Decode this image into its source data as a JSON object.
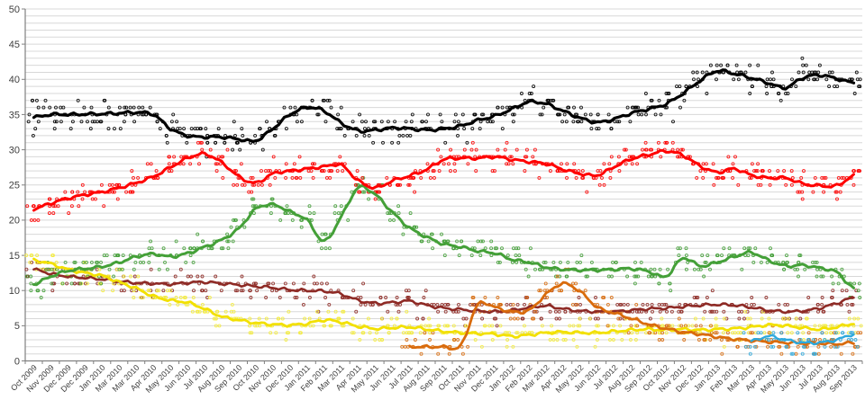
{
  "page": {
    "background": "#FFFFFF"
  },
  "chart_data": {
    "type": "scatter",
    "subtype": "poll-scatter-with-trend-lines",
    "title": "",
    "xlabel": "",
    "ylabel": "",
    "ylim": [
      0,
      50
    ],
    "y_ticks": [
      0,
      5,
      10,
      15,
      20,
      25,
      30,
      35,
      40,
      45,
      50
    ],
    "minor_grid_step": 1,
    "grid_on": true,
    "legend": "none",
    "grid_color": "#D8D8D8",
    "axis_color": "#808080",
    "label_color": "#3F3F3F",
    "x_labels": [
      "Oct 2009",
      "Nov 2009",
      "Dec 2009",
      "Dec 2009",
      "Jan 2010",
      "Mar 2010",
      "Mar 2010",
      "Apr 2010",
      "May 2010",
      "Jun 2010",
      "Jul 2010",
      "Aug 2010",
      "Sep 2010",
      "Oct 2010",
      "Nov 2010",
      "Dec 2010",
      "Jan 2011",
      "Feb 2011",
      "Mar 2011",
      "Apr 2011",
      "May 2011",
      "Jun 2011",
      "Jul 2011",
      "Aug 2011",
      "Sep 2011",
      "Oct 2011",
      "Nov 2011",
      "Dec 2011",
      "Jan 2012",
      "Feb 2012",
      "Mar 2012",
      "Apr 2012",
      "May 2012",
      "Jun 2012",
      "Jul 2012",
      "Aug 2012",
      "Sep 2012",
      "Oct 2012",
      "Nov 2012",
      "Dec 2012",
      "Jan 2013",
      "Feb 2013",
      "Mar 2013",
      "Apr 2013",
      "May 2013",
      "Jun 2013",
      "Jul 2013",
      "Aug 2013",
      "Sep 2013"
    ],
    "series": [
      {
        "name": "dark-red",
        "color": "#8E2A25",
        "line_width": 2.6,
        "scatter_per_month": 7,
        "values": [
          13,
          12.4,
          12,
          11.8,
          11.6,
          11.3,
          11.1,
          11,
          10.9,
          11.1,
          11.2,
          11,
          10.8,
          10.6,
          10.4,
          10.1,
          10,
          9.9,
          9.5,
          8.6,
          8.2,
          8.3,
          8.5,
          7.9,
          7.5,
          7.3,
          7.1,
          7,
          7.2,
          7.6,
          7.8,
          7.4,
          7.1,
          7,
          7,
          7.2,
          7.4,
          7.5,
          7.7,
          7.9,
          8,
          7.9,
          7.6,
          7.2,
          7,
          7.1,
          7.5,
          8.2,
          9
        ]
      },
      {
        "name": "yellow",
        "color": "#F2E000",
        "scatter_color": "#F5ED3C",
        "line_width": 2.8,
        "scatter_per_month": 8,
        "values": [
          14.3,
          13.8,
          13,
          12.5,
          12.1,
          11.2,
          10.3,
          9.2,
          8.6,
          8.3,
          7.4,
          6.3,
          5.8,
          5.4,
          5.2,
          5.1,
          5.3,
          5.8,
          5.5,
          4.9,
          4.6,
          4.7,
          4.8,
          4.5,
          4.2,
          4,
          3.9,
          3.8,
          3.5,
          3.7,
          4,
          4.1,
          4,
          4,
          4.2,
          4.4,
          4.5,
          4.4,
          4.5,
          4.4,
          4.5,
          4.6,
          4.8,
          5.1,
          5,
          4.7,
          4.5,
          4.8,
          5.3
        ]
      },
      {
        "name": "green",
        "color": "#44A038",
        "line_width": 3,
        "scatter_per_month": 8,
        "values": [
          10.9,
          12,
          12.8,
          13.1,
          13.4,
          14,
          14.8,
          15.2,
          14.8,
          15.3,
          16.2,
          17.2,
          18.8,
          21.6,
          22.2,
          21.2,
          20,
          17,
          20.5,
          24.6,
          23.6,
          21.1,
          18.9,
          17.6,
          16.6,
          16.2,
          15.6,
          15.3,
          14.4,
          14,
          13.3,
          13,
          12.9,
          12.9,
          13,
          13.1,
          12.7,
          12,
          14.6,
          13.5,
          14,
          14.8,
          15.4,
          14.3,
          13.5,
          13.6,
          13.2,
          12.6,
          10.3
        ]
      },
      {
        "name": "orange",
        "color": "#D96B0C",
        "line_width": 2.8,
        "scatter_per_month": 7,
        "values": [
          null,
          null,
          null,
          null,
          null,
          null,
          null,
          null,
          null,
          null,
          null,
          null,
          null,
          null,
          null,
          null,
          null,
          null,
          null,
          null,
          null,
          null,
          2,
          2,
          2,
          2.2,
          8,
          7.6,
          7,
          7.2,
          9.5,
          11,
          9.8,
          7.6,
          6.8,
          6,
          5.2,
          4.6,
          4.1,
          3.8,
          3.4,
          3.1,
          2.9,
          2.7,
          2.6,
          2.5,
          2.5,
          2.4,
          2.6
        ]
      },
      {
        "name": "light-blue",
        "color": "#2EA8DC",
        "line_width": 2.4,
        "scatter_per_month": 7,
        "values": [
          null,
          null,
          null,
          null,
          null,
          null,
          null,
          null,
          null,
          null,
          null,
          null,
          null,
          null,
          null,
          null,
          null,
          null,
          null,
          null,
          null,
          null,
          null,
          null,
          null,
          null,
          null,
          null,
          null,
          null,
          null,
          null,
          null,
          null,
          null,
          null,
          null,
          null,
          null,
          null,
          null,
          null,
          2.8,
          3.5,
          3,
          2.6,
          2.6,
          3,
          3.8
        ]
      },
      {
        "name": "red",
        "color": "#FF0000",
        "line_width": 3,
        "scatter_per_month": 9,
        "values": [
          21.6,
          22.4,
          23.1,
          23.6,
          24,
          24.6,
          25.3,
          26.2,
          27.5,
          28.8,
          29.4,
          28.2,
          26.2,
          25.3,
          26.6,
          27,
          27.3,
          27.6,
          27.8,
          25.6,
          24.6,
          25.6,
          26.3,
          27.2,
          28.6,
          28.8,
          28.8,
          29,
          28.6,
          28.3,
          28,
          27.2,
          26.6,
          26.4,
          27.6,
          28.7,
          29.3,
          29.8,
          29.2,
          27.7,
          26.8,
          27.3,
          26.4,
          26,
          26,
          25.2,
          24.9,
          24.9,
          26.3
        ]
      },
      {
        "name": "black",
        "color": "#000000",
        "line_width": 3.2,
        "scatter_per_month": 9,
        "values": [
          34.6,
          35,
          35,
          35.05,
          35.1,
          35.2,
          35.3,
          35,
          33,
          32,
          31.8,
          31.8,
          31.5,
          31.3,
          33,
          35,
          36,
          35.5,
          33.8,
          32.7,
          32.8,
          33.1,
          33,
          32.8,
          33,
          33.4,
          34.2,
          34.8,
          35.8,
          36.8,
          36.5,
          35.5,
          34.5,
          33.9,
          34.4,
          35.2,
          35.8,
          36.5,
          38,
          39.8,
          41.2,
          40.8,
          40.2,
          39.5,
          38.8,
          40.2,
          40.6,
          40.1,
          39.5
        ]
      }
    ]
  }
}
